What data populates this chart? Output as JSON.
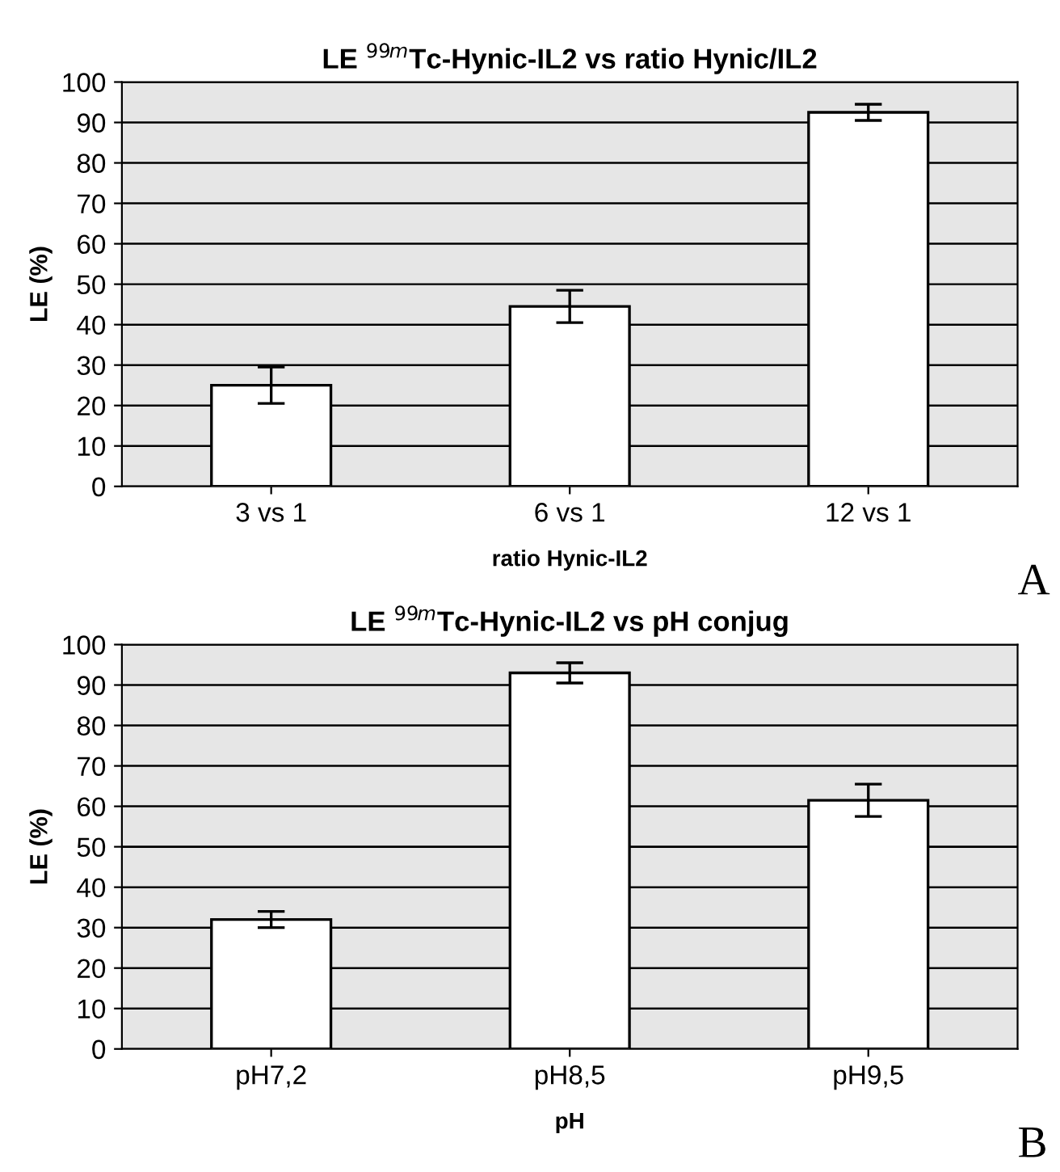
{
  "chart_data": [
    {
      "type": "bar",
      "title": "LE $^{99m}$Tc-Hynic-IL2 vs ratio Hynic/IL2",
      "xlabel": "ratio Hynic-IL2",
      "ylabel": "LE (%)",
      "categories": [
        "3 vs 1",
        "6 vs 1",
        "12 vs 1"
      ],
      "values": [
        25,
        44.5,
        92.5
      ],
      "errors": [
        4.5,
        4,
        2
      ],
      "color": "#ffffff",
      "ylim": [
        0,
        100
      ],
      "yticks": [
        0,
        10,
        20,
        30,
        40,
        50,
        60,
        70,
        80,
        90,
        100
      ],
      "grid": "y",
      "annotations": [
        "A"
      ]
    },
    {
      "type": "bar",
      "title": "LE $^{99m}$Tc-Hynic-IL2 vs pH conjug",
      "xlabel": "pH",
      "ylabel": "LE (%)",
      "categories": [
        "pH7,2",
        "pH8,5",
        "pH9,5"
      ],
      "values": [
        32,
        93,
        61.5
      ],
      "errors": [
        2,
        2.5,
        4
      ],
      "color": "#ffffff",
      "ylim": [
        0,
        100
      ],
      "yticks": [
        0,
        10,
        20,
        30,
        40,
        50,
        60,
        70,
        80,
        90,
        100
      ],
      "grid": "y",
      "annotations": [
        "B"
      ]
    }
  ]
}
